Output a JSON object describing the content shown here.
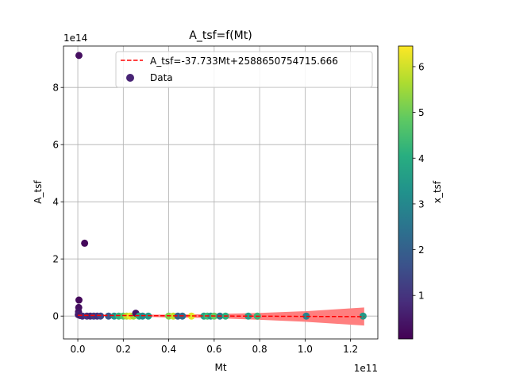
{
  "chart_data": {
    "type": "scatter",
    "title": "A_tsf=f(Mt)",
    "xlabel": "Mt",
    "ylabel": "A_tsf",
    "x_offset_label": "1e11",
    "y_offset_label": "1e14",
    "xlim": [
      -0.063,
      1.32
    ],
    "ylim": [
      -0.8,
      9.45
    ],
    "xticks": [
      0.0,
      0.2,
      0.4,
      0.6,
      0.8,
      1.0,
      1.2
    ],
    "xtick_labels": [
      "0.0",
      "0.2",
      "0.4",
      "0.6",
      "0.8",
      "1.0",
      "1.2"
    ],
    "yticks": [
      0,
      2,
      4,
      6,
      8
    ],
    "ytick_labels": [
      "0",
      "2",
      "4",
      "6",
      "8"
    ],
    "grid": true,
    "legend_position": "top-right",
    "legend": [
      {
        "label": "A_tsf=-37.733Mt+2588650754715.666",
        "kind": "line",
        "color": "#ff0000"
      },
      {
        "label": "Data",
        "kind": "marker",
        "color": "#482475"
      }
    ],
    "colorbar": {
      "label": "x_tsf",
      "range": [
        0.05,
        6.45
      ],
      "ticks": [
        1,
        2,
        3,
        4,
        5,
        6
      ],
      "tick_labels": [
        "1",
        "2",
        "3",
        "4",
        "5",
        "6"
      ],
      "colormap": "viridis"
    },
    "fit_line": {
      "label": "A_tsf=-37.733Mt+2588650754715.666",
      "color": "#ff0000",
      "x": [
        0.0,
        1.26
      ],
      "y": [
        0.026,
        -0.021
      ]
    },
    "confidence_band": {
      "color": "#ff7f7f",
      "x": [
        0.0,
        0.2,
        0.4,
        0.6,
        0.8,
        1.0,
        1.26
      ],
      "y_upper": [
        0.04,
        0.05,
        0.05,
        0.07,
        0.11,
        0.17,
        0.3
      ],
      "y_lower": [
        0.01,
        0.0,
        -0.05,
        -0.07,
        -0.13,
        -0.2,
        -0.33
      ]
    },
    "series": [
      {
        "name": "Data",
        "points": [
          {
            "x": 0.005,
            "y": 9.12,
            "c": 0.3
          },
          {
            "x": 0.03,
            "y": 2.55,
            "c": 0.2
          },
          {
            "x": 0.005,
            "y": 0.56,
            "c": 0.2
          },
          {
            "x": 0.004,
            "y": 0.3,
            "c": 0.3
          },
          {
            "x": 0.003,
            "y": 0.15,
            "c": 0.4
          },
          {
            "x": 0.002,
            "y": 0.05,
            "c": 0.6
          },
          {
            "x": 0.01,
            "y": 0.02,
            "c": 0.5
          },
          {
            "x": 0.02,
            "y": 0.0,
            "c": 0.8
          },
          {
            "x": 0.04,
            "y": 0.0,
            "c": 1.0
          },
          {
            "x": 0.055,
            "y": 0.0,
            "c": 0.7
          },
          {
            "x": 0.07,
            "y": 0.0,
            "c": 1.1
          },
          {
            "x": 0.085,
            "y": 0.0,
            "c": 0.9
          },
          {
            "x": 0.1,
            "y": 0.0,
            "c": 1.4
          },
          {
            "x": 0.135,
            "y": 0.0,
            "c": 1.8
          },
          {
            "x": 0.16,
            "y": 0.0,
            "c": 3.3
          },
          {
            "x": 0.18,
            "y": 0.0,
            "c": 4.2
          },
          {
            "x": 0.2,
            "y": 0.0,
            "c": 4.7
          },
          {
            "x": 0.215,
            "y": 0.0,
            "c": 5.8
          },
          {
            "x": 0.23,
            "y": 0.0,
            "c": 6.3
          },
          {
            "x": 0.245,
            "y": 0.0,
            "c": 5.5
          },
          {
            "x": 0.255,
            "y": 0.1,
            "c": 0.4
          },
          {
            "x": 0.27,
            "y": 0.0,
            "c": 3.8
          },
          {
            "x": 0.285,
            "y": 0.0,
            "c": 3.1
          },
          {
            "x": 0.31,
            "y": 0.0,
            "c": 3.5
          },
          {
            "x": 0.4,
            "y": 0.0,
            "c": 5.2
          },
          {
            "x": 0.42,
            "y": 0.0,
            "c": 5.9
          },
          {
            "x": 0.44,
            "y": 0.0,
            "c": 2.0
          },
          {
            "x": 0.46,
            "y": 0.0,
            "c": 2.3
          },
          {
            "x": 0.5,
            "y": 0.0,
            "c": 6.2
          },
          {
            "x": 0.555,
            "y": 0.0,
            "c": 3.7
          },
          {
            "x": 0.57,
            "y": 0.0,
            "c": 4.4
          },
          {
            "x": 0.585,
            "y": 0.0,
            "c": 3.4
          },
          {
            "x": 0.6,
            "y": 0.0,
            "c": 4.9
          },
          {
            "x": 0.625,
            "y": 0.0,
            "c": 2.6
          },
          {
            "x": 0.65,
            "y": 0.0,
            "c": 4.1
          },
          {
            "x": 0.75,
            "y": 0.0,
            "c": 3.6
          },
          {
            "x": 0.79,
            "y": 0.0,
            "c": 4.3
          },
          {
            "x": 1.005,
            "y": 0.0,
            "c": 2.9
          },
          {
            "x": 1.255,
            "y": 0.0,
            "c": 3.5
          }
        ]
      }
    ]
  }
}
